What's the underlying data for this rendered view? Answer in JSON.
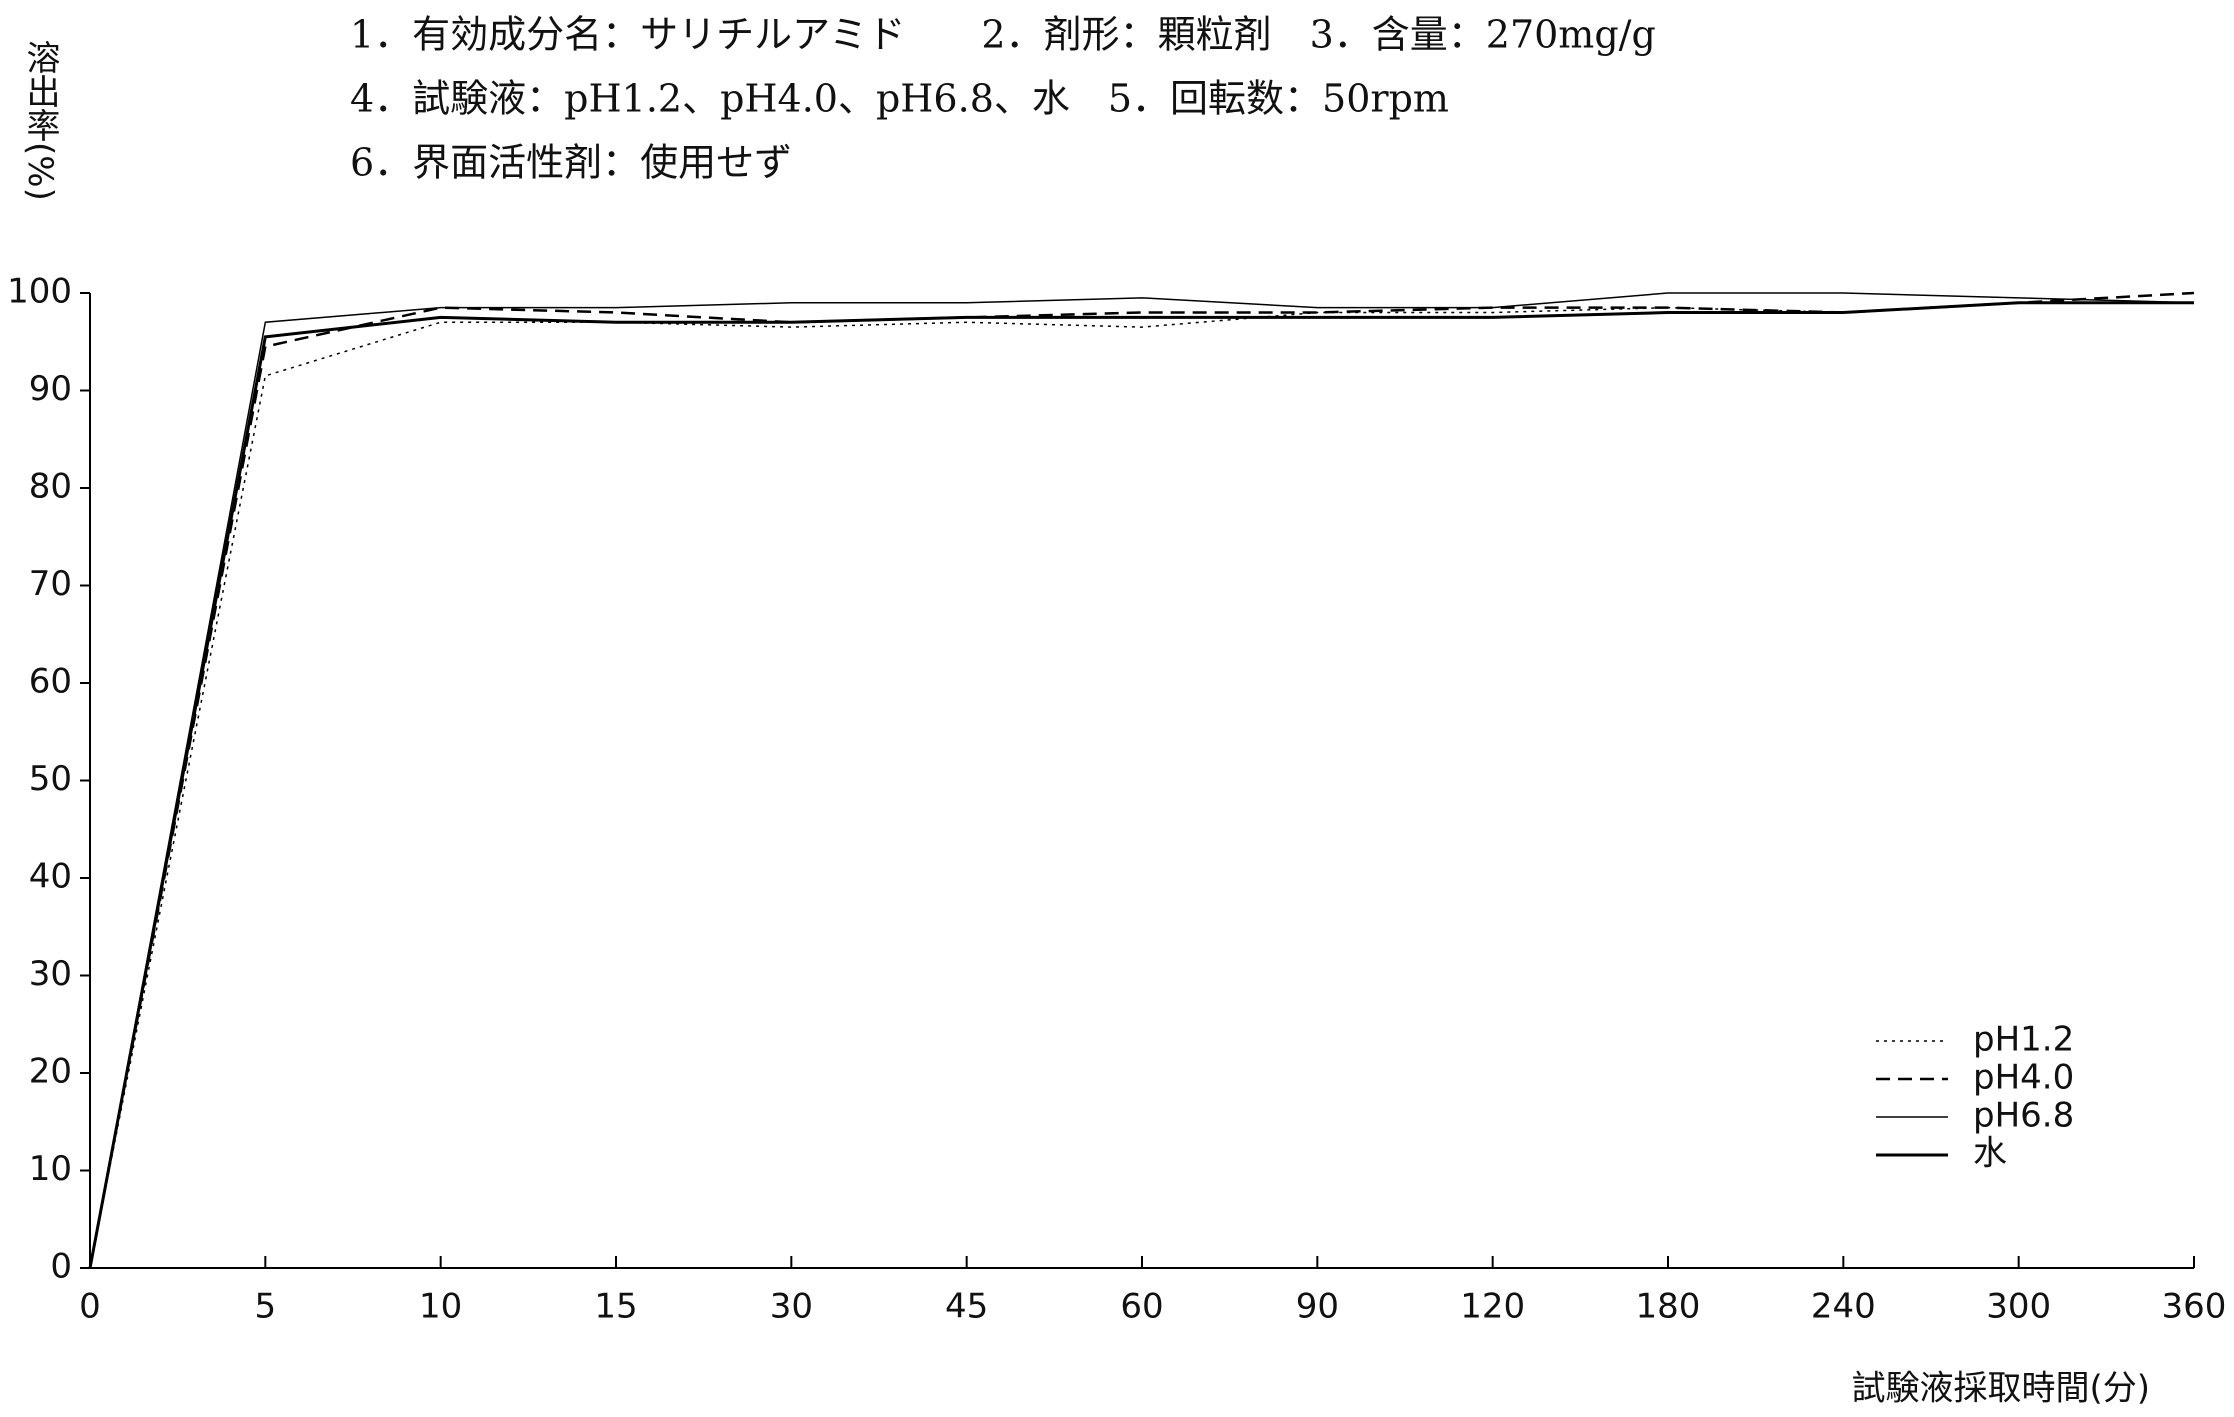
{
  "chart_data": {
    "type": "line",
    "title": [
      "1．有効成分名：サリチルアミド　　2．剤形：顆粒剤　3．含量：270mg/g",
      "4．試験液：pH1.2、pH4.0、pH6.8、水　5．回転数：50rpm",
      "6．界面活性剤：使用せず"
    ],
    "y_label": "溶出率(%)",
    "x_label": "試験液採取時間(分)",
    "categories": [
      "0",
      "5",
      "10",
      "15",
      "30",
      "45",
      "60",
      "90",
      "120",
      "180",
      "240",
      "300",
      "360"
    ],
    "series": [
      {
        "name": "pH1.2",
        "color": "#000000",
        "line_style": "dotted",
        "values": [
          0,
          91.5,
          97,
          97,
          96.5,
          97,
          96.5,
          98,
          98,
          98.5,
          98,
          99,
          99
        ]
      },
      {
        "name": "pH4.0",
        "color": "#000000",
        "line_style": "dashed",
        "values": [
          0,
          94.5,
          98.5,
          98,
          97,
          97.5,
          98,
          98,
          98.5,
          98.5,
          98,
          99,
          100
        ]
      },
      {
        "name": "pH6.8",
        "color": "#000000",
        "line_style": "thin",
        "values": [
          0,
          97,
          98.5,
          98.5,
          99,
          99,
          99.5,
          98.5,
          98.5,
          100,
          100,
          99.5,
          99
        ]
      },
      {
        "name": "水",
        "color": "#000000",
        "line_style": "solid",
        "values": [
          0,
          95.5,
          97.5,
          97,
          97,
          97.5,
          97.5,
          97.5,
          97.5,
          98,
          98,
          99,
          99
        ]
      }
    ],
    "ylim": [
      0,
      100
    ],
    "yticks": [
      0,
      10,
      20,
      30,
      40,
      50,
      60,
      70,
      80,
      90,
      100
    ],
    "legend": "lower right"
  }
}
